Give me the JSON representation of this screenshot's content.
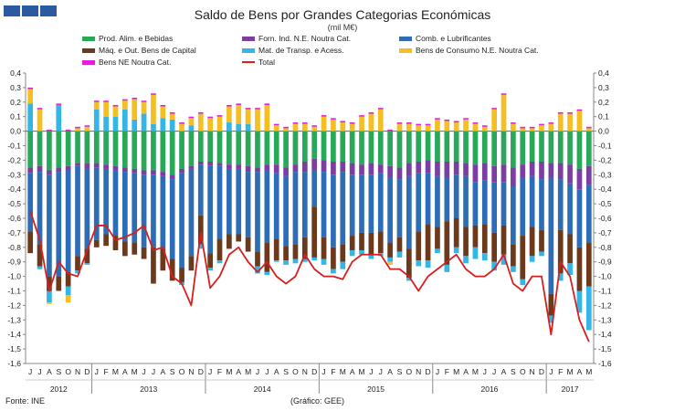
{
  "header": {
    "title": "Saldo de Bens por Grandes Categorias Económicas",
    "unit": "(mil M€)"
  },
  "footer": {
    "source": "Fonte: INE",
    "credit": "(Gráfico: GEE)"
  },
  "colors": {
    "food": "#2aa85a",
    "industrial": "#7a3fa0",
    "fuel": "#2d6db5",
    "machinery": "#6b3a1c",
    "transport": "#35b4e6",
    "consumer": "#f5be22",
    "other": "#e020d8",
    "total": "#d81f1f"
  },
  "chart_data": {
    "type": "bar",
    "stacked": true,
    "title": "Saldo de Bens por Grandes Categorias Económicas",
    "ylabel": "(mil M€)",
    "ylim": [
      -1.6,
      0.4
    ],
    "yticks": [
      "0,4",
      "0,3",
      "0,2",
      "0,1",
      "0,0",
      "-0,1",
      "-0,2",
      "-0,3",
      "-0,4",
      "-0,5",
      "-0,6",
      "-0,7",
      "-0,8",
      "-0,9",
      "-1,0",
      "-1,1",
      "-1,2",
      "-1,3",
      "-1,4",
      "-1,5",
      "-1,6"
    ],
    "months": [
      "J",
      "J",
      "A",
      "S",
      "O",
      "N",
      "D",
      "J",
      "F",
      "M",
      "A",
      "M",
      "J",
      "J",
      "A",
      "S",
      "O",
      "N",
      "D",
      "J",
      "F",
      "M",
      "A",
      "M",
      "J",
      "J",
      "A",
      "S",
      "O",
      "N",
      "D",
      "J",
      "F",
      "M",
      "A",
      "M",
      "J",
      "J",
      "A",
      "S",
      "O",
      "N",
      "D",
      "J",
      "F",
      "M",
      "A",
      "M",
      "J",
      "J",
      "A",
      "S",
      "O",
      "N",
      "D",
      "J",
      "F",
      "M",
      "A",
      "M"
    ],
    "years": [
      {
        "label": "2012",
        "count": 7
      },
      {
        "label": "2013",
        "count": 12
      },
      {
        "label": "2014",
        "count": 12
      },
      {
        "label": "2015",
        "count": 12
      },
      {
        "label": "2016",
        "count": 12
      },
      {
        "label": "2017",
        "count": 5
      }
    ],
    "legend": [
      {
        "key": "food",
        "label": "Prod. Alim. e Bebidas"
      },
      {
        "key": "industrial",
        "label": "Forn. Ind. N.E. Noutra Cat."
      },
      {
        "key": "fuel",
        "label": "Comb. e Lubrificantes"
      },
      {
        "key": "machinery",
        "label": "Máq. e Out. Bens de Capital"
      },
      {
        "key": "transport",
        "label": "Mat. de Transp. e Acess."
      },
      {
        "key": "consumer",
        "label": "Bens de Consumo N.E. Noutra Cat."
      },
      {
        "key": "other",
        "label": "Bens NE Noutra Cat."
      },
      {
        "key": "total",
        "label": "Total"
      }
    ],
    "series": [
      {
        "key": "food",
        "name": "Prod. Alim. e Bebidas",
        "values": [
          -0.25,
          -0.24,
          -0.27,
          -0.25,
          -0.24,
          -0.22,
          -0.22,
          -0.22,
          -0.23,
          -0.24,
          -0.25,
          -0.26,
          -0.27,
          -0.27,
          -0.28,
          -0.3,
          -0.26,
          -0.24,
          -0.21,
          -0.21,
          -0.22,
          -0.23,
          -0.23,
          -0.24,
          -0.25,
          -0.23,
          -0.23,
          -0.25,
          -0.23,
          -0.21,
          -0.19,
          -0.2,
          -0.21,
          -0.21,
          -0.22,
          -0.23,
          -0.22,
          -0.23,
          -0.24,
          -0.25,
          -0.22,
          -0.21,
          -0.2,
          -0.21,
          -0.21,
          -0.21,
          -0.22,
          -0.23,
          -0.22,
          -0.24,
          -0.23,
          -0.25,
          -0.23,
          -0.21,
          -0.21,
          -0.22,
          -0.22,
          -0.23,
          -0.26,
          -0.24
        ]
      },
      {
        "key": "industrial",
        "name": "Forn. Ind. N.E. Noutra Cat.",
        "values": [
          -0.04,
          -0.04,
          -0.03,
          -0.03,
          -0.03,
          -0.02,
          -0.04,
          -0.03,
          -0.03,
          -0.03,
          -0.03,
          -0.03,
          -0.03,
          -0.03,
          -0.03,
          -0.03,
          -0.03,
          -0.02,
          -0.02,
          -0.03,
          -0.02,
          -0.03,
          -0.03,
          -0.04,
          -0.03,
          -0.04,
          -0.06,
          -0.06,
          -0.05,
          -0.07,
          -0.08,
          -0.08,
          -0.09,
          -0.07,
          -0.08,
          -0.07,
          -0.08,
          -0.06,
          -0.08,
          -0.08,
          -0.09,
          -0.08,
          -0.09,
          -0.1,
          -0.11,
          -0.09,
          -0.09,
          -0.12,
          -0.12,
          -0.11,
          -0.12,
          -0.13,
          -0.09,
          -0.1,
          -0.12,
          -0.1,
          -0.11,
          -0.13,
          -0.14,
          -0.13
        ]
      },
      {
        "key": "fuel",
        "name": "Comb. e Lubrificantes",
        "values": [
          -0.4,
          -0.5,
          -0.7,
          -0.72,
          -0.7,
          -0.62,
          -0.55,
          -0.5,
          -0.45,
          -0.45,
          -0.48,
          -0.48,
          -0.5,
          -0.5,
          -0.5,
          -0.55,
          -0.65,
          -0.6,
          -0.35,
          -0.6,
          -0.5,
          -0.45,
          -0.45,
          -0.45,
          -0.55,
          -0.5,
          -0.45,
          -0.48,
          -0.5,
          -0.45,
          -0.25,
          -0.45,
          -0.5,
          -0.5,
          -0.42,
          -0.4,
          -0.4,
          -0.4,
          -0.45,
          -0.4,
          -0.5,
          -0.4,
          -0.35,
          -0.35,
          -0.3,
          -0.3,
          -0.35,
          -0.3,
          -0.3,
          -0.35,
          -0.3,
          -0.4,
          -0.4,
          -0.35,
          -0.35,
          -0.8,
          -0.35,
          -0.35,
          -0.4,
          -0.4
        ]
      },
      {
        "key": "machinery",
        "name": "Máq. e Out. Bens de Capital",
        "values": [
          -0.15,
          -0.15,
          -0.1,
          -0.1,
          -0.1,
          -0.1,
          -0.1,
          -0.05,
          -0.08,
          -0.1,
          -0.1,
          -0.08,
          -0.08,
          -0.25,
          -0.15,
          -0.15,
          -0.1,
          -0.1,
          -0.2,
          -0.1,
          -0.15,
          -0.1,
          -0.05,
          -0.1,
          -0.1,
          -0.2,
          -0.15,
          -0.1,
          -0.1,
          -0.15,
          -0.35,
          -0.15,
          -0.15,
          -0.12,
          -0.1,
          -0.12,
          -0.15,
          -0.15,
          -0.1,
          -0.1,
          -0.2,
          -0.2,
          -0.25,
          -0.15,
          -0.3,
          -0.2,
          -0.2,
          -0.15,
          -0.2,
          -0.2,
          -0.2,
          -0.15,
          -0.3,
          -0.2,
          -0.15,
          -0.15,
          -0.3,
          -0.2,
          -0.3,
          -0.3
        ]
      },
      {
        "key": "transport",
        "name": "Mat. de Transp. e Acess.",
        "values": [
          0.19,
          -0.02,
          -0.08,
          0.18,
          -0.06,
          -0.02,
          -0.01,
          0.15,
          0.1,
          0.1,
          0.15,
          0.08,
          0.12,
          0.05,
          0.09,
          0.08,
          -0.02,
          0.04,
          -0.03,
          -0.02,
          -0.02,
          0.06,
          0.05,
          0.05,
          -0.05,
          -0.02,
          -0.01,
          -0.03,
          -0.03,
          -0.02,
          -0.02,
          -0.04,
          -0.03,
          -0.05,
          -0.04,
          -0.03,
          -0.03,
          -0.02,
          -0.03,
          -0.04,
          -0.02,
          -0.04,
          -0.05,
          -0.03,
          -0.05,
          -0.04,
          -0.05,
          -0.08,
          -0.05,
          -0.06,
          -0.07,
          -0.04,
          -0.04,
          -0.04,
          -0.03,
          -0.05,
          -0.05,
          -0.08,
          -0.15,
          -0.3
        ]
      },
      {
        "key": "consumer",
        "name": "Bens de Consumo N.E. Noutra Cat.",
        "values": [
          0.1,
          0.15,
          -0.01,
          0.0,
          -0.05,
          0.02,
          0.03,
          0.05,
          0.1,
          0.07,
          0.06,
          0.14,
          0.08,
          0.2,
          0.08,
          0.04,
          0.05,
          0.05,
          0.12,
          0.09,
          0.1,
          0.11,
          0.13,
          0.1,
          0.15,
          0.18,
          0.04,
          0.02,
          0.05,
          0.05,
          0.03,
          0.1,
          0.08,
          0.06,
          0.05,
          0.1,
          0.12,
          0.15,
          -0.02,
          0.05,
          0.05,
          0.04,
          0.04,
          0.08,
          0.07,
          0.06,
          0.08,
          0.05,
          0.03,
          0.15,
          0.25,
          0.05,
          0.02,
          0.02,
          0.04,
          0.05,
          0.12,
          0.12,
          0.14,
          0.02
        ]
      },
      {
        "key": "other",
        "name": "Bens NE Noutra Cat.",
        "values": [
          0.01,
          0.01,
          0.01,
          0.01,
          0.01,
          0.01,
          0.01,
          0.01,
          0.01,
          0.01,
          0.01,
          0.01,
          0.01,
          0.01,
          0.01,
          0.01,
          0.01,
          0.01,
          0.01,
          0.01,
          0.01,
          0.01,
          0.01,
          0.01,
          0.01,
          0.01,
          0.01,
          0.01,
          0.01,
          0.01,
          0.01,
          0.01,
          0.01,
          0.01,
          0.01,
          0.01,
          0.01,
          0.01,
          0.01,
          0.01,
          0.01,
          0.01,
          0.01,
          0.01,
          0.01,
          0.01,
          0.01,
          0.01,
          0.01,
          0.01,
          0.01,
          0.01,
          0.01,
          0.01,
          0.01,
          0.01,
          0.01,
          0.01,
          0.01,
          0.01
        ]
      },
      {
        "key": "total",
        "name": "Total",
        "values": [
          -0.55,
          -0.75,
          -1.1,
          -0.9,
          -0.98,
          -1.0,
          -0.82,
          -0.65,
          -0.65,
          -0.75,
          -0.73,
          -0.7,
          -0.65,
          -0.82,
          -0.8,
          -1.0,
          -1.05,
          -1.2,
          -0.7,
          -1.08,
          -1.0,
          -0.85,
          -0.8,
          -0.9,
          -0.97,
          -0.9,
          -1.0,
          -1.05,
          -1.0,
          -0.85,
          -0.95,
          -1.0,
          -1.0,
          -1.02,
          -0.9,
          -0.85,
          -0.85,
          -0.85,
          -0.95,
          -0.95,
          -1.0,
          -1.1,
          -1.0,
          -0.95,
          -0.9,
          -0.85,
          -0.95,
          -1.0,
          -1.0,
          -0.95,
          -0.85,
          -1.05,
          -1.1,
          -1.0,
          -1.0,
          -1.4,
          -0.9,
          -1.0,
          -1.3,
          -1.45
        ]
      }
    ]
  }
}
